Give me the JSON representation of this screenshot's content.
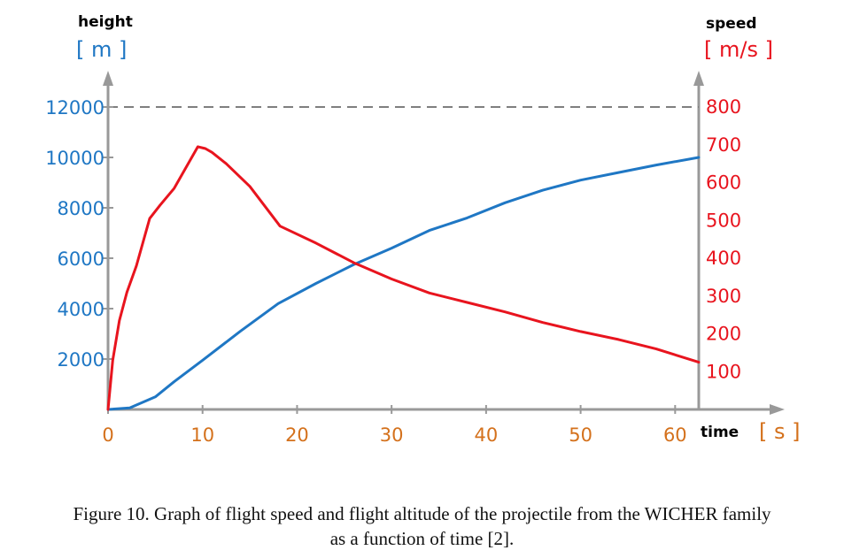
{
  "chart_data": {
    "type": "line",
    "x_axis": {
      "label": "time",
      "unit": "[ s ]",
      "range": [
        0,
        62.5
      ],
      "ticks": [
        0,
        10,
        20,
        30,
        40,
        50,
        60
      ]
    },
    "y_left": {
      "label": "height",
      "unit": "[ m ]",
      "range": [
        0,
        12000
      ],
      "ticks": [
        2000,
        4000,
        6000,
        8000,
        10000,
        12000
      ]
    },
    "y_right": {
      "label": "speed",
      "unit": "[ m/s ]",
      "range": [
        0,
        800
      ],
      "ticks": [
        100,
        200,
        300,
        400,
        500,
        600,
        700,
        800
      ]
    },
    "reference_line": {
      "axis": "y_left",
      "value": 12000,
      "style": "dashed"
    },
    "series": [
      {
        "axis": "y_left",
        "color": "#1f77c4",
        "points": [
          [
            0,
            0
          ],
          [
            2.3,
            60
          ],
          [
            5,
            500
          ],
          [
            7,
            1100
          ],
          [
            10,
            1950
          ],
          [
            14,
            3100
          ],
          [
            18,
            4200
          ],
          [
            22,
            5000
          ],
          [
            26,
            5750
          ],
          [
            30,
            6400
          ],
          [
            34,
            7100
          ],
          [
            38,
            7600
          ],
          [
            42,
            8200
          ],
          [
            46,
            8700
          ],
          [
            50,
            9100
          ],
          [
            54,
            9400
          ],
          [
            58,
            9700
          ],
          [
            62.5,
            10000
          ]
        ]
      },
      {
        "axis": "y_right",
        "color": "#e8141e",
        "points": [
          [
            0,
            0
          ],
          [
            0.5,
            130
          ],
          [
            1.2,
            235
          ],
          [
            2,
            310
          ],
          [
            3,
            380
          ],
          [
            4.4,
            505
          ],
          [
            5.5,
            540
          ],
          [
            7,
            585
          ],
          [
            9.5,
            695
          ],
          [
            10.3,
            690
          ],
          [
            11,
            680
          ],
          [
            12.5,
            650
          ],
          [
            15,
            590
          ],
          [
            18.2,
            485
          ],
          [
            22,
            440
          ],
          [
            26,
            388
          ],
          [
            30,
            345
          ],
          [
            34,
            308
          ],
          [
            38,
            283
          ],
          [
            42,
            258
          ],
          [
            46,
            230
          ],
          [
            50,
            206
          ],
          [
            54,
            185
          ],
          [
            58,
            160
          ],
          [
            62.5,
            125
          ]
        ]
      }
    ]
  },
  "caption": {
    "line1": "Figure 10. Graph of flight speed and flight altitude of the projectile from the WICHER family",
    "line2": "as a function of time [2]."
  },
  "colors": {
    "blue": "#1f77c4",
    "red": "#e8141e",
    "orange": "#d4711c",
    "gray": "#999999"
  }
}
